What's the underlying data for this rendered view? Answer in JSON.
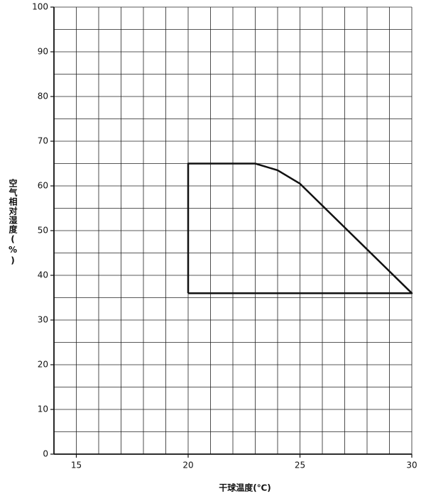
{
  "chart_data": {
    "type": "line",
    "x_label": "干球温度(℃)",
    "y_label": "空气相对湿度(%)",
    "xlim": [
      14,
      30
    ],
    "xticks": [
      15,
      20,
      25,
      30
    ],
    "ylim": [
      0,
      100
    ],
    "yticks": [
      0,
      10,
      20,
      30,
      40,
      50,
      60,
      70,
      80,
      90,
      100
    ],
    "grid": {
      "x_step": 1,
      "y_step": 5
    },
    "series": [
      {
        "color": "#111111",
        "x": [
          20,
          20,
          23,
          24,
          25,
          30,
          20
        ],
        "values": [
          36,
          65,
          65,
          63.5,
          60.5,
          36,
          36
        ]
      }
    ]
  }
}
